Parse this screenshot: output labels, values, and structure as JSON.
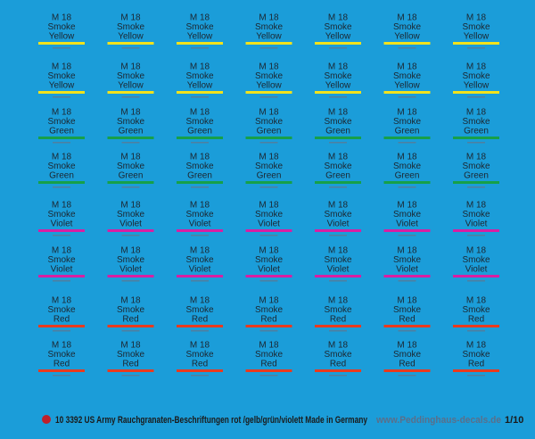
{
  "rows": [
    {
      "lines": [
        "M 18",
        "Smoke",
        "Yellow"
      ],
      "color": "#f2e21c"
    },
    {
      "lines": [
        "M 18",
        "Smoke",
        "Yellow"
      ],
      "color": "#f2e21c"
    },
    {
      "lines": [
        "M 18",
        "Smoke",
        "Green"
      ],
      "color": "#16a049"
    },
    {
      "lines": [
        "M 18",
        "Smoke",
        "Green"
      ],
      "color": "#16a049"
    },
    {
      "lines": [
        "M 18",
        "Smoke",
        "Violet"
      ],
      "color": "#d81fa2"
    },
    {
      "lines": [
        "M 18",
        "Smoke",
        "Violet"
      ],
      "color": "#d81fa2"
    },
    {
      "lines": [
        "M 18",
        "Smoke",
        "Red"
      ],
      "color": "#ea3a1e"
    },
    {
      "lines": [
        "M 18",
        "Smoke",
        "Red"
      ],
      "color": "#ea3a1e"
    }
  ],
  "footer": {
    "title": "10 3392 US Army Rauchgranaten-Beschriftungen rot /gelb/grün/violett  Made in Germany",
    "website": "www.Peddinghaus-decals.de",
    "scale": "1/10"
  }
}
